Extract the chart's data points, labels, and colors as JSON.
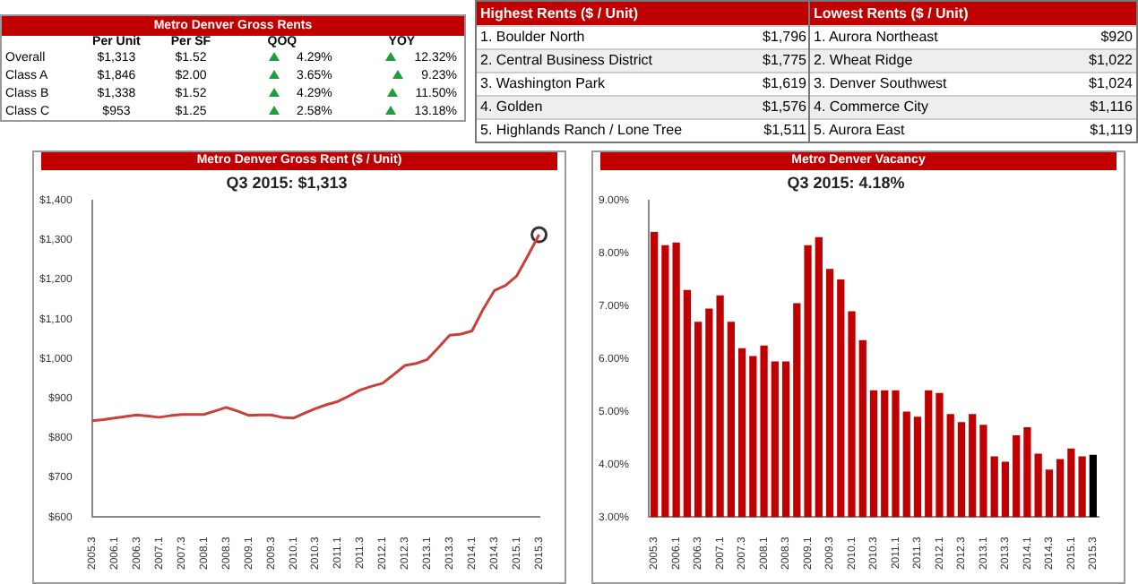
{
  "chart_data": [
    {
      "type": "other",
      "title": "Metro Denver Gross Rents",
      "categories": [
        "Overall",
        "Class A",
        "Class B",
        "Class C"
      ],
      "series": [
        {
          "name": "Per Unit",
          "values": [
            1313,
            1846,
            1338,
            953
          ],
          "value_labels": [
            "$1,313",
            "$1,846",
            "$1,338",
            "$953"
          ]
        },
        {
          "name": "Per SF",
          "values": [
            1.52,
            2.0,
            1.52,
            1.25
          ],
          "value_labels": [
            "$1.52",
            "$2.00",
            "$1.52",
            "$1.25"
          ]
        },
        {
          "name": "QOQ",
          "values": [
            4.29,
            3.65,
            4.29,
            2.58
          ],
          "value_labels": [
            "4.29%",
            "3.65%",
            "4.29%",
            "2.58%"
          ]
        },
        {
          "name": "YOY",
          "values": [
            12.32,
            9.23,
            11.5,
            13.18
          ],
          "value_labels": [
            "12.32%",
            "9.23%",
            "11.50%",
            "13.18%"
          ]
        }
      ]
    },
    {
      "type": "other",
      "title": "Highest Rents ($ / Unit)",
      "categories": [
        "1. Boulder North",
        "2. Central Business District",
        "3. Washington Park",
        "4. Golden",
        "5. Highlands Ranch / Lone Tree"
      ],
      "values": [
        1796,
        1775,
        1619,
        1576,
        1511
      ],
      "value_labels": [
        "$1,796",
        "$1,775",
        "$1,619",
        "$1,576",
        "$1,511"
      ]
    },
    {
      "type": "other",
      "title": "Lowest Rents ($ / Unit)",
      "categories": [
        "1. Aurora Northeast",
        "2. Wheat Ridge",
        "3. Denver Southwest",
        "4. Commerce City",
        "5. Aurora East"
      ],
      "values": [
        920,
        1022,
        1024,
        1116,
        1119
      ],
      "value_labels": [
        "$920",
        "$1,022",
        "$1,024",
        "$1,116",
        "$1,119"
      ]
    },
    {
      "type": "line",
      "title": "Metro Denver Gross Rent ($ / Unit)",
      "subtitle": "Q3 2015: $1,313",
      "categories": [
        "2005.3",
        null,
        "2006.1",
        null,
        "2006.3",
        null,
        "2007.1",
        null,
        "2007.3",
        null,
        "2008.1",
        null,
        "2008.3",
        null,
        "2009.1",
        null,
        "2009.3",
        null,
        "2010.1",
        null,
        "2010.3",
        null,
        "2011.1",
        null,
        "2011.3",
        null,
        "2012.1",
        null,
        "2012.3",
        null,
        "2013.1",
        null,
        "2013.3",
        null,
        "2014.1",
        null,
        "2014.3",
        null,
        "2015.1",
        null,
        "2015.3"
      ],
      "series": [
        {
          "type": "line",
          "color": "#c9403a",
          "values": [
            843,
            846,
            850,
            854,
            858,
            855,
            852,
            856,
            859,
            859,
            859,
            868,
            877,
            868,
            857,
            858,
            858,
            852,
            850,
            862,
            874,
            884,
            892,
            906,
            921,
            930,
            938,
            960,
            983,
            988,
            998,
            1028,
            1059,
            1062,
            1070,
            1125,
            1172,
            1185,
            1209,
            1260,
            1313
          ]
        },
        {
          "type": "scatter",
          "color": "#333333",
          "values": [
            null,
            null,
            null,
            null,
            null,
            null,
            null,
            null,
            null,
            null,
            null,
            null,
            null,
            null,
            null,
            null,
            null,
            null,
            null,
            null,
            null,
            null,
            null,
            null,
            null,
            null,
            null,
            null,
            null,
            null,
            null,
            null,
            null,
            null,
            null,
            null,
            null,
            null,
            null,
            null,
            1313
          ]
        }
      ],
      "ylim": [
        600,
        1400
      ],
      "yticks": [
        {
          "value": 600,
          "label": "$600"
        },
        {
          "value": 700,
          "label": "$700"
        },
        {
          "value": 800,
          "label": "$800"
        },
        {
          "value": 900,
          "label": "$900"
        },
        {
          "value": 1000,
          "label": "$1,000"
        },
        {
          "value": 1100,
          "label": "$1,100"
        },
        {
          "value": 1200,
          "label": "$1,200"
        },
        {
          "value": 1300,
          "label": "$1,300"
        },
        {
          "value": 1400,
          "label": "$1,400"
        }
      ]
    },
    {
      "type": "bar",
      "title": "Metro Denver Vacancy",
      "subtitle": "Q3 2015: 4.18%",
      "categories": [
        "2005.3",
        null,
        "2006.1",
        null,
        "2006.3",
        null,
        "2007.1",
        null,
        "2007.3",
        null,
        "2008.1",
        null,
        "2008.3",
        null,
        "2009.1",
        null,
        "2009.3",
        null,
        "2010.1",
        null,
        "2010.3",
        null,
        "2011.1",
        null,
        "2011.3",
        null,
        "2012.1",
        null,
        "2012.3",
        null,
        "2013.1",
        null,
        "2013.3",
        null,
        "2014.1",
        null,
        "2014.3",
        null,
        "2015.1",
        null,
        "2015.3"
      ],
      "values": [
        8.4,
        8.15,
        8.2,
        7.3,
        6.7,
        6.95,
        7.2,
        6.7,
        6.2,
        6.05,
        6.25,
        5.95,
        5.95,
        7.05,
        8.15,
        8.3,
        7.7,
        7.5,
        6.9,
        6.35,
        5.4,
        5.4,
        5.4,
        5.0,
        4.9,
        5.4,
        5.35,
        4.95,
        4.8,
        4.95,
        4.75,
        4.15,
        4.05,
        4.55,
        4.7,
        4.2,
        3.9,
        4.1,
        4.3,
        4.15,
        4.18
      ],
      "colors": [
        "#c00000",
        "#c00000",
        "#c00000",
        "#c00000",
        "#c00000",
        "#c00000",
        "#c00000",
        "#c00000",
        "#c00000",
        "#c00000",
        "#c00000",
        "#c00000",
        "#c00000",
        "#c00000",
        "#c00000",
        "#c00000",
        "#c00000",
        "#c00000",
        "#c00000",
        "#c00000",
        "#c00000",
        "#c00000",
        "#c00000",
        "#c00000",
        "#c00000",
        "#c00000",
        "#c00000",
        "#c00000",
        "#c00000",
        "#c00000",
        "#c00000",
        "#c00000",
        "#c00000",
        "#c00000",
        "#c00000",
        "#c00000",
        "#c00000",
        "#c00000",
        "#c00000",
        "#c00000",
        "#000000"
      ],
      "ylim": [
        3,
        9
      ],
      "yticks": [
        {
          "value": 3,
          "label": "3.00%"
        },
        {
          "value": 4,
          "label": "4.00%"
        },
        {
          "value": 5,
          "label": "5.00%"
        },
        {
          "value": 6,
          "label": "6.00%"
        },
        {
          "value": 7,
          "label": "7.00%"
        },
        {
          "value": 8,
          "label": "8.00%"
        },
        {
          "value": 9,
          "label": "9.00%"
        }
      ]
    }
  ]
}
